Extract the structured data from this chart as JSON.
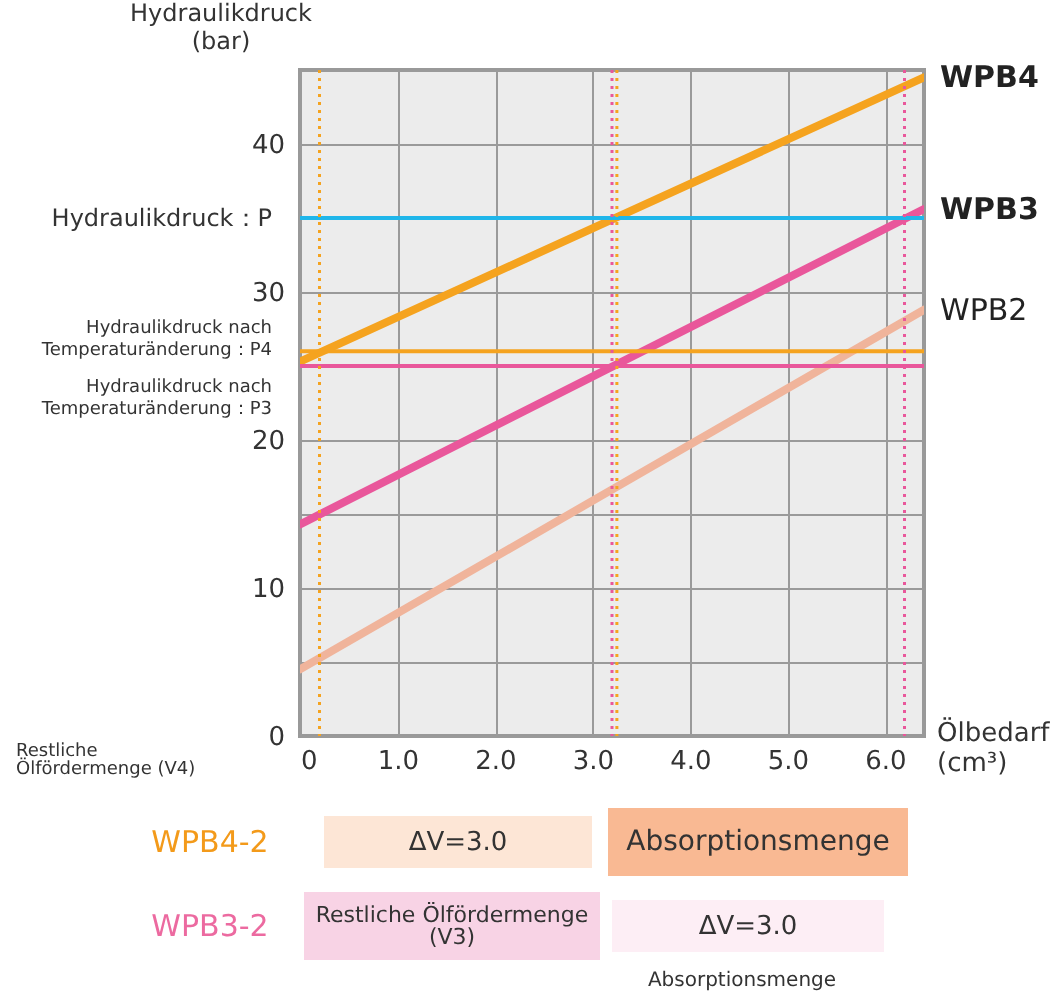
{
  "chart_data": {
    "type": "line",
    "xlabel": "Ölbedarf (cm³)",
    "ylabel": "Hydraulikdruck (bar)",
    "xlim": [
      0,
      6.4
    ],
    "ylim": [
      0,
      45
    ],
    "xticks": [
      0,
      {
        "value": 1,
        "label": "1.0"
      },
      {
        "value": 2,
        "label": "2.0"
      },
      {
        "value": 3,
        "label": "3.0"
      },
      {
        "value": 4,
        "label": "4.0"
      },
      {
        "value": 5,
        "label": "5.0"
      },
      {
        "value": 6,
        "label": "6.0"
      }
    ],
    "yticks": [
      0,
      {
        "value": 5,
        "label": null
      },
      10,
      {
        "value": 15,
        "label": null
      },
      20,
      {
        "value": 25,
        "label": null
      },
      30,
      {
        "value": 35,
        "label": null
      },
      40,
      {
        "value": 45,
        "label": null
      }
    ],
    "grid": true,
    "legend": false,
    "x": [
      0,
      6.4
    ],
    "series": [
      {
        "name": "WPB4",
        "color": "#f5a31f",
        "values": [
          25.3,
          44.5
        ]
      },
      {
        "name": "WPB3",
        "color": "#e9579b",
        "values": [
          14.3,
          35.6
        ]
      },
      {
        "name": "WPB2",
        "color": "#f0b49b",
        "values": [
          4.5,
          28.8
        ]
      }
    ],
    "ref_lines": [
      {
        "axis": "y",
        "value": 35,
        "label": "Hydraulikdruck：P",
        "color": "#1fb6ea"
      },
      {
        "axis": "y",
        "value": 26,
        "label": "Hydraulikdruck nach Temperaturänderung：P4",
        "color": "#f5a31f"
      },
      {
        "axis": "y",
        "value": 25,
        "label": "Hydraulikdruck nach Temperaturänderung：P3",
        "color": "#e9579b"
      },
      {
        "axis": "x",
        "value": 0.2,
        "color": "#f5a31f",
        "line_style": "dotted"
      },
      {
        "axis": "x",
        "value": 3.25,
        "color": "#f5a31f",
        "line_style": "dotted"
      },
      {
        "axis": "x",
        "value": 3.2,
        "color": "#e9579b",
        "line_style": "dotted"
      },
      {
        "axis": "x",
        "value": 6.2,
        "color": "#e9579b",
        "line_style": "dotted"
      }
    ],
    "annotations": [
      "Restliche Ölfördermenge (V4)",
      "WPB4-2",
      "ΔV=3.0",
      "Absorptionsmenge",
      "WPB3-2",
      "Restliche Ölfördermenge (V3)",
      "ΔV=3.0",
      "Absorptionsmenge"
    ]
  }
}
